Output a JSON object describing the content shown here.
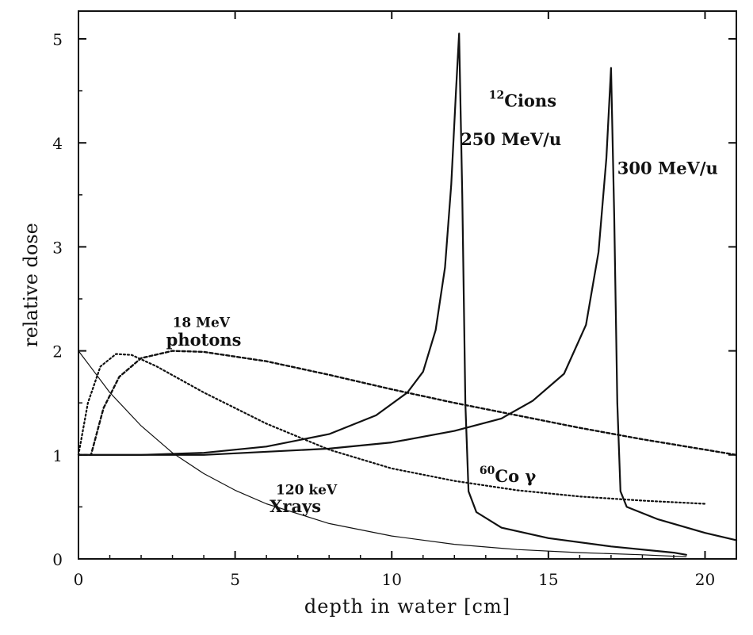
{
  "chart_data": {
    "type": "line",
    "title": "",
    "xlabel": "depth in water [cm]",
    "ylabel": "relative dose",
    "xlim": [
      0,
      21
    ],
    "ylim": [
      0,
      5.2
    ],
    "xticks": [
      "0",
      "5",
      "10",
      "15",
      "20"
    ],
    "yticks": [
      "0",
      "1",
      "2",
      "3",
      "4",
      "5"
    ],
    "grid": false,
    "legend": "none",
    "series": [
      {
        "name": "",
        "style": "dotted",
        "points": [
          [
            0,
            1.0
          ],
          [
            0.3,
            1.5
          ],
          [
            0.7,
            1.85
          ],
          [
            1.2,
            1.97
          ],
          [
            1.7,
            1.96
          ],
          [
            2.5,
            1.85
          ],
          [
            4,
            1.6
          ],
          [
            6,
            1.3
          ],
          [
            8,
            1.05
          ],
          [
            10,
            0.87
          ],
          [
            12,
            0.75
          ],
          [
            14,
            0.66
          ],
          [
            16,
            0.6
          ],
          [
            18,
            0.56
          ],
          [
            20,
            0.53
          ]
        ]
      },
      {
        "name": "",
        "style": "dashed",
        "points": [
          [
            0,
            1.0
          ],
          [
            0.4,
            1.0
          ],
          [
            0.8,
            1.45
          ],
          [
            1.3,
            1.75
          ],
          [
            2,
            1.93
          ],
          [
            3,
            2.0
          ],
          [
            4,
            1.99
          ],
          [
            6,
            1.9
          ],
          [
            8,
            1.77
          ],
          [
            10,
            1.63
          ],
          [
            12,
            1.5
          ],
          [
            14,
            1.38
          ],
          [
            16,
            1.26
          ],
          [
            18,
            1.15
          ],
          [
            20,
            1.05
          ],
          [
            21,
            1.0
          ]
        ]
      },
      {
        "name": "",
        "style": "thin",
        "points": [
          [
            0,
            2.0
          ],
          [
            0.5,
            1.8
          ],
          [
            1,
            1.6
          ],
          [
            2,
            1.28
          ],
          [
            3,
            1.02
          ],
          [
            4,
            0.82
          ],
          [
            5,
            0.66
          ],
          [
            6,
            0.53
          ],
          [
            8,
            0.34
          ],
          [
            10,
            0.22
          ],
          [
            12,
            0.14
          ],
          [
            14,
            0.09
          ],
          [
            16,
            0.06
          ],
          [
            18,
            0.04
          ],
          [
            19.4,
            0.02
          ]
        ]
      },
      {
        "name": "",
        "style": "solid",
        "points": [
          [
            0,
            1.0
          ],
          [
            2,
            1.0
          ],
          [
            4,
            1.02
          ],
          [
            6,
            1.08
          ],
          [
            8,
            1.2
          ],
          [
            9.5,
            1.38
          ],
          [
            10.5,
            1.6
          ],
          [
            11,
            1.8
          ],
          [
            11.4,
            2.2
          ],
          [
            11.7,
            2.8
          ],
          [
            11.9,
            3.6
          ],
          [
            12.05,
            4.5
          ],
          [
            12.15,
            5.05
          ],
          [
            12.25,
            3.5
          ],
          [
            12.35,
            1.5
          ],
          [
            12.45,
            0.65
          ],
          [
            12.7,
            0.45
          ],
          [
            13.5,
            0.3
          ],
          [
            15,
            0.2
          ],
          [
            17,
            0.12
          ],
          [
            19,
            0.06
          ],
          [
            19.4,
            0.04
          ]
        ]
      },
      {
        "name": "",
        "style": "solid",
        "points": [
          [
            0,
            1.0
          ],
          [
            4,
            1.0
          ],
          [
            8,
            1.06
          ],
          [
            10,
            1.12
          ],
          [
            12,
            1.23
          ],
          [
            13.5,
            1.35
          ],
          [
            14.5,
            1.52
          ],
          [
            15.5,
            1.78
          ],
          [
            16.2,
            2.25
          ],
          [
            16.6,
            2.95
          ],
          [
            16.85,
            3.85
          ],
          [
            17.0,
            4.72
          ],
          [
            17.1,
            3.3
          ],
          [
            17.2,
            1.5
          ],
          [
            17.3,
            0.65
          ],
          [
            17.5,
            0.5
          ],
          [
            18.5,
            0.38
          ],
          [
            20,
            0.25
          ],
          [
            21,
            0.18
          ]
        ]
      }
    ],
    "annotations": [
      {
        "id": "ions",
        "text": "Cions",
        "superscript": "12",
        "x": 13.1,
        "y": 4.35
      },
      {
        "id": "mev250",
        "text": "250 MeV/u",
        "x": 12.2,
        "y": 3.98
      },
      {
        "id": "mev300",
        "text": "300 MeV/u",
        "x": 17.2,
        "y": 3.7
      },
      {
        "id": "photons18a",
        "text": "18 MeV",
        "x": 3.0,
        "y": 2.23
      },
      {
        "id": "photons18b",
        "text": "photons",
        "x": 2.8,
        "y": 2.05
      },
      {
        "id": "co60",
        "text": "Co  γ",
        "superscript": "60",
        "x": 12.8,
        "y": 0.74
      },
      {
        "id": "xray1",
        "text": "120 keV",
        "x": 6.3,
        "y": 0.62
      },
      {
        "id": "xray2",
        "text": "Xrays",
        "x": 6.1,
        "y": 0.45
      }
    ]
  }
}
